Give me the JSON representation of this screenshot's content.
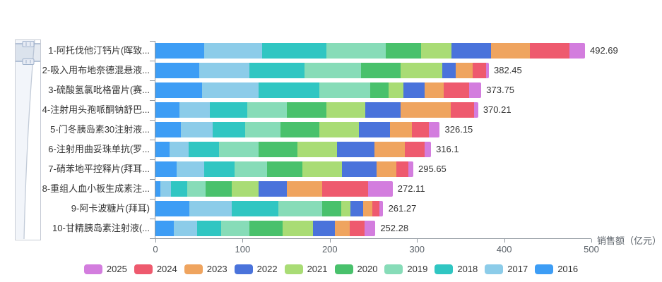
{
  "chart_data": {
    "type": "bar",
    "orientation": "horizontal",
    "stacked": true,
    "xlabel": "销售额（亿元）",
    "xlim": [
      0,
      500
    ],
    "x_ticks": [
      0,
      100,
      200,
      300,
      400,
      500
    ],
    "grid": false,
    "legend_position": "bottom",
    "categories": [
      "1-阿托伐他汀钙片(晖致...",
      "2-吸入用布地奈德混悬液...",
      "3-硫酸氢氯吡格雷片(赛...",
      "4-注射用头孢哌酮钠舒巴...",
      "5-门冬胰岛素30注射液...",
      "6-注射用曲妥珠单抗(罗...",
      "7-硝苯地平控释片(拜耳...",
      "8-重组人血小板生成素注...",
      "9-阿卡波糖片(拜耳)",
      "10-甘精胰岛素注射液(..."
    ],
    "totals": [
      492.69,
      382.45,
      373.75,
      370.21,
      326.15,
      316.1,
      295.65,
      272.11,
      261.27,
      252.28
    ],
    "total_labels": [
      "492.69",
      "382.45",
      "373.75",
      "370.21",
      "326.15",
      "316.1",
      "295.65",
      "272.11",
      "261.27",
      "252.28"
    ],
    "series": [
      {
        "name": "2016",
        "color": "#3D9DF5",
        "values": [
          56.3,
          50.2,
          53.8,
          27.6,
          29.1,
          16.1,
          24.6,
          6.0,
          39.2,
          21.1
        ]
      },
      {
        "name": "2017",
        "color": "#8CCCE9",
        "values": [
          65.8,
          57.8,
          64.3,
          35.2,
          36.2,
          21.6,
          31.7,
          11.6,
          48.7,
          26.6
        ]
      },
      {
        "name": "2018",
        "color": "#30C6C2",
        "values": [
          73.8,
          62.8,
          70.3,
          42.7,
          37.7,
          35.2,
          34.2,
          18.6,
          52.8,
          27.7
        ]
      },
      {
        "name": "2019",
        "color": "#87DCB8",
        "values": [
          67.9,
          65.3,
          57.8,
          45.2,
          40.2,
          45.2,
          37.7,
          21.6,
          50.2,
          32.6
        ]
      },
      {
        "name": "2020",
        "color": "#49C16C",
        "values": [
          41.2,
          45.2,
          21.1,
          45.2,
          45.2,
          45.2,
          40.2,
          30.1,
          22.6,
          37.7
        ]
      },
      {
        "name": "2021",
        "color": "#A9DC75",
        "values": [
          34.6,
          47.8,
          17.1,
          45.2,
          45.2,
          45.2,
          45.2,
          30.2,
          10.1,
          35.2
        ]
      },
      {
        "name": "2022",
        "color": "#4A73DB",
        "values": [
          45.2,
          15.1,
          24.6,
          40.2,
          35.2,
          42.7,
          40.2,
          32.6,
          15.1,
          25.1
        ]
      },
      {
        "name": "2023",
        "color": "#EFA45F",
        "values": [
          44.8,
          20.1,
          21.6,
          57.8,
          25.1,
          35.2,
          22.6,
          40.2,
          10.1,
          16.6
        ]
      },
      {
        "name": "2024",
        "color": "#EE5A6E",
        "values": [
          45.2,
          15.1,
          29.1,
          26.6,
          20.1,
          22.6,
          14.1,
          52.8,
          8.5,
          17.5
        ]
      },
      {
        "name": "2025",
        "color": "#D37DDE",
        "values": [
          17.9,
          3.1,
          14.1,
          4.5,
          12.2,
          7.1,
          5.3,
          28.4,
          4.1,
          12.2
        ]
      }
    ]
  },
  "legend": {
    "items": [
      {
        "label": "2025",
        "color": "#D37DDE"
      },
      {
        "label": "2024",
        "color": "#EE5A6E"
      },
      {
        "label": "2023",
        "color": "#EFA45F"
      },
      {
        "label": "2022",
        "color": "#4A73DB"
      },
      {
        "label": "2021",
        "color": "#A9DC75"
      },
      {
        "label": "2020",
        "color": "#49C16C"
      },
      {
        "label": "2019",
        "color": "#87DCB8"
      },
      {
        "label": "2018",
        "color": "#30C6C2"
      },
      {
        "label": "2017",
        "color": "#8CCCE9"
      },
      {
        "label": "2016",
        "color": "#3D9DF5"
      }
    ]
  }
}
